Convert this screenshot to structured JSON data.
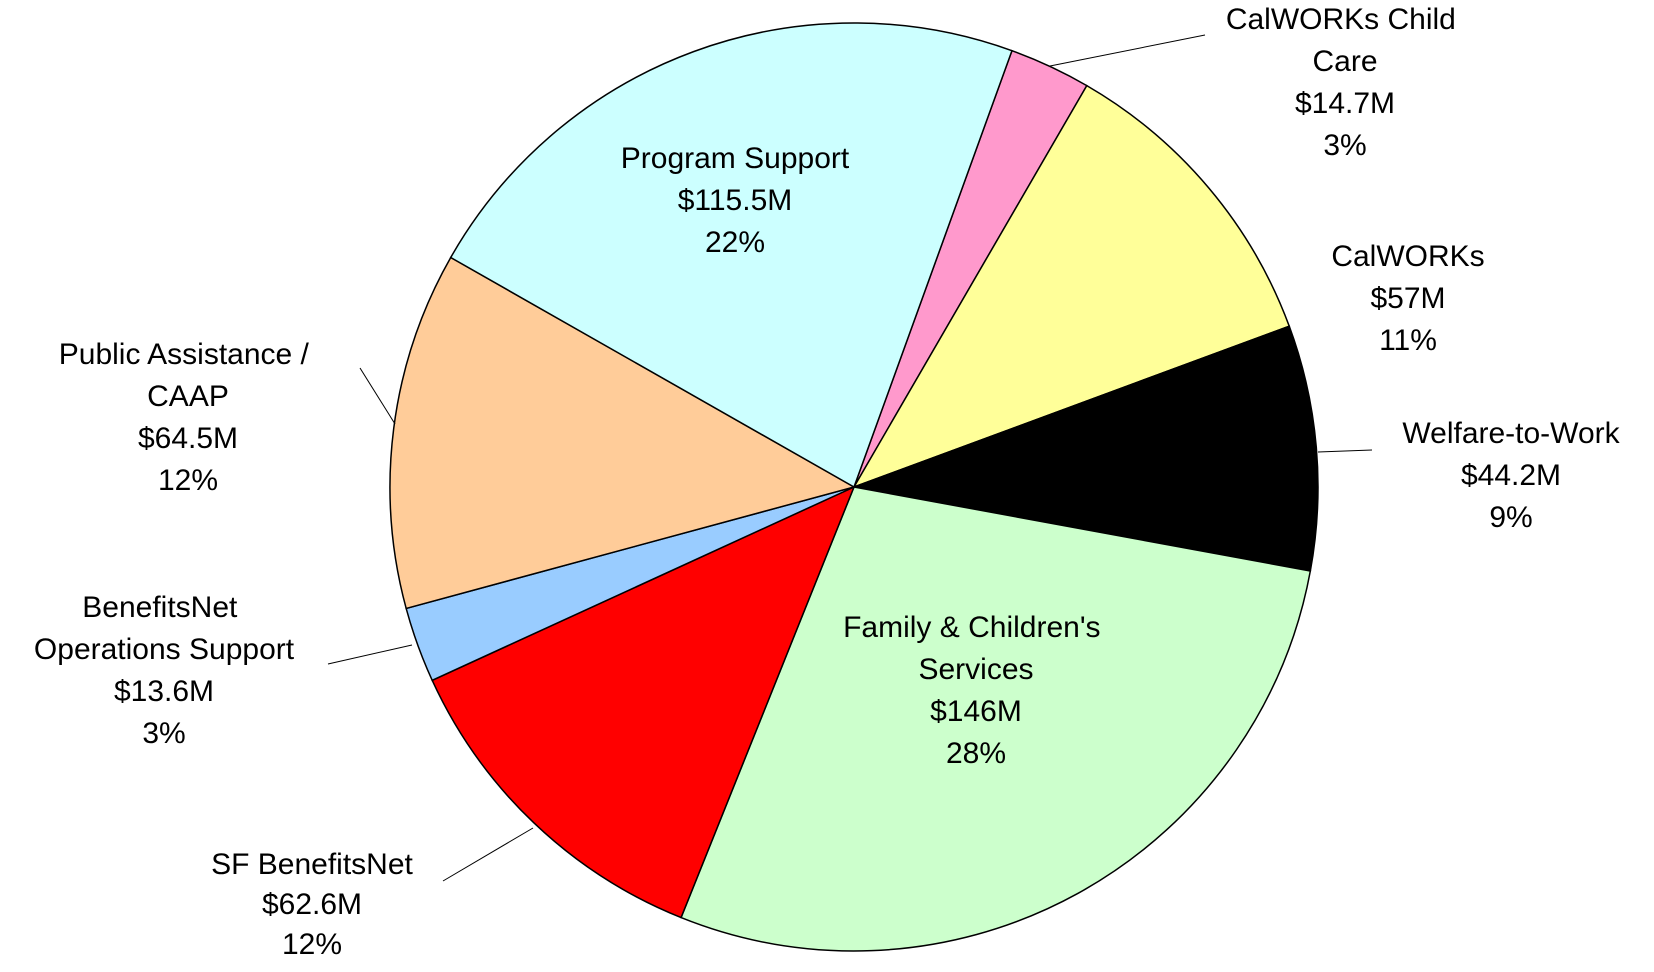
{
  "chart_data": {
    "type": "pie",
    "categories": [
      "CalWORKs Child Care",
      "CalWORKs",
      "Welfare-to-Work",
      "Family & Children's Services",
      "SF BenefitsNet",
      "BenefitsNet Operations Support",
      "Public Assistance / CAAP",
      "Program Support"
    ],
    "values": [
      14.7,
      57,
      44.2,
      146,
      62.6,
      13.6,
      64.5,
      115.5
    ],
    "value_labels": [
      "$14.7M",
      "$57M",
      "$44.2M",
      "$146M",
      "$62.6M",
      "$13.6M",
      "$64.5M",
      "$115.5M"
    ],
    "percent_labels": [
      "3%",
      "11%",
      "9%",
      "28%",
      "12%",
      "3%",
      "12%",
      "22%"
    ],
    "colors": [
      "#ff99cc",
      "#ffff99",
      "#000000",
      "#ccffcc",
      "#ff0000",
      "#99ccff",
      "#ffcc99",
      "#ccffff"
    ]
  }
}
